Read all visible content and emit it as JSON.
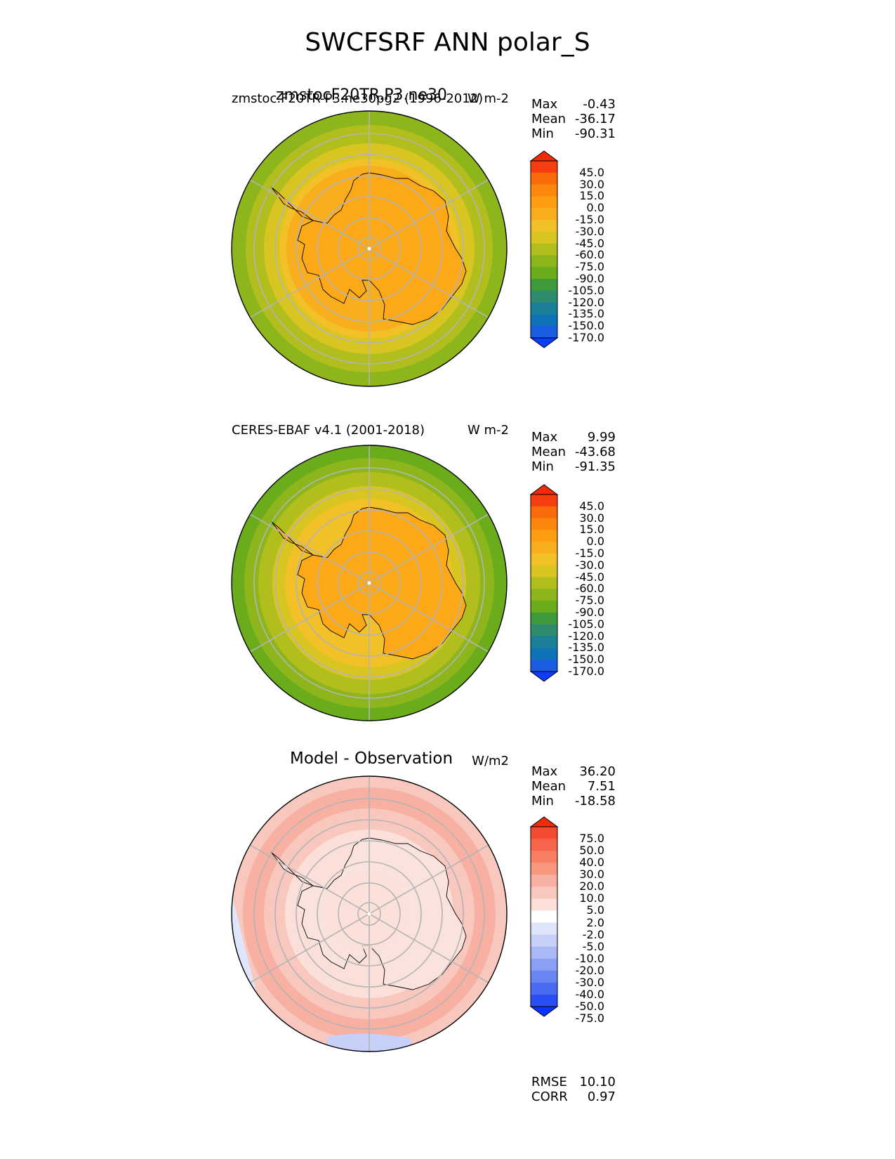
{
  "title": "SWCFSRF ANN polar_S",
  "panels": [
    {
      "id": "model",
      "left_title": "zmstoc.F20TR-P3.ne30pg2 (1996-2012)",
      "left_title_overlay": "zmstocF20TR.P3.ne30",
      "center_title": "",
      "units": "W m-2",
      "stats": [
        {
          "label": "Max",
          "value": "-0.43"
        },
        {
          "label": "Mean",
          "value": "-36.17"
        },
        {
          "label": "Min",
          "value": "-90.31"
        }
      ],
      "colorbar_ticks": [
        "45.0",
        "30.0",
        "15.0",
        "0.0",
        "-15.0",
        "-30.0",
        "-45.0",
        "-60.0",
        "-75.0",
        "-90.0",
        "-105.0",
        "-120.0",
        "-135.0",
        "-150.0",
        "-170.0"
      ]
    },
    {
      "id": "obs",
      "left_title": "CERES-EBAF v4.1 (2001-2018)",
      "center_title": "",
      "units": "W m-2",
      "stats": [
        {
          "label": "Max",
          "value": "9.99"
        },
        {
          "label": "Mean",
          "value": "-43.68"
        },
        {
          "label": "Min",
          "value": "-91.35"
        }
      ],
      "colorbar_ticks": [
        "45.0",
        "30.0",
        "15.0",
        "0.0",
        "-15.0",
        "-30.0",
        "-45.0",
        "-60.0",
        "-75.0",
        "-90.0",
        "-105.0",
        "-120.0",
        "-135.0",
        "-150.0",
        "-170.0"
      ]
    },
    {
      "id": "diff",
      "left_title": "",
      "center_title": "Model - Observation",
      "units": "W/m2",
      "stats": [
        {
          "label": "Max",
          "value": "36.20"
        },
        {
          "label": "Mean",
          "value": "7.51"
        },
        {
          "label": "Min",
          "value": "-18.58"
        }
      ],
      "colorbar_ticks": [
        "75.0",
        "50.0",
        "40.0",
        "30.0",
        "20.0",
        "10.0",
        "5.0",
        "2.0",
        "-2.0",
        "-5.0",
        "-10.0",
        "-20.0",
        "-30.0",
        "-40.0",
        "-50.0",
        "-75.0"
      ],
      "metrics": [
        {
          "label": "RMSE",
          "value": "10.10"
        },
        {
          "label": "CORR",
          "value": "0.97"
        }
      ]
    }
  ],
  "colors": {
    "field_scale": [
      "#0b3dff",
      "#1b5de0",
      "#0f73b8",
      "#1b7f97",
      "#2f8b6e",
      "#3f9a3c",
      "#6aac1c",
      "#8db61c",
      "#b2be1e",
      "#d9c521",
      "#f2c028",
      "#f9ae1d",
      "#fd9d10",
      "#fc870c",
      "#f86a0a",
      "#f63e10",
      "#f32a0a"
    ],
    "diff_scale": [
      "#0a33ff",
      "#2a50f5",
      "#4a6cf3",
      "#6a86f3",
      "#8aa0f5",
      "#aab8f7",
      "#c6d0f8",
      "#dfe5fa",
      "#ffffff",
      "#fbe0da",
      "#f8c8bf",
      "#f8b0a2",
      "#f7987f",
      "#f77f63",
      "#f6654b",
      "#f44a31",
      "#f32a0a"
    ],
    "antarctica_model": "#fca817",
    "antarctica_obs": "#fca817",
    "antarctica_diff": "#fbe3dd"
  },
  "chart_data": [
    {
      "type": "heatmap",
      "title": "zmstoc.F20TR-P3.ne30pg2 (1996-2012)",
      "projection": "south polar stereographic",
      "units": "W m-2",
      "max": -0.43,
      "mean": -36.17,
      "min": -90.31,
      "levels": [
        -170,
        -150,
        -135,
        -120,
        -105,
        -90,
        -75,
        -60,
        -45,
        -30,
        -15,
        0,
        15,
        30,
        45
      ]
    },
    {
      "type": "heatmap",
      "title": "CERES-EBAF v4.1 (2001-2018)",
      "projection": "south polar stereographic",
      "units": "W m-2",
      "max": 9.99,
      "mean": -43.68,
      "min": -91.35,
      "levels": [
        -170,
        -150,
        -135,
        -120,
        -105,
        -90,
        -75,
        -60,
        -45,
        -30,
        -15,
        0,
        15,
        30,
        45
      ]
    },
    {
      "type": "heatmap",
      "title": "Model - Observation",
      "projection": "south polar stereographic",
      "units": "W/m2",
      "max": 36.2,
      "mean": 7.51,
      "min": -18.58,
      "rmse": 10.1,
      "corr": 0.97,
      "levels": [
        -75,
        -50,
        -40,
        -30,
        -20,
        -10,
        -5,
        -2,
        2,
        5,
        10,
        20,
        30,
        40,
        50,
        75
      ]
    }
  ]
}
